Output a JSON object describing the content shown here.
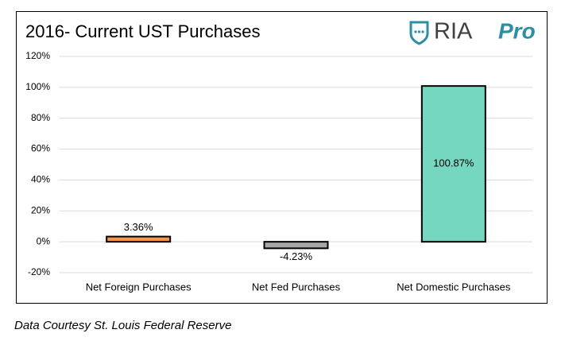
{
  "chart_data": {
    "type": "bar",
    "title": "2016- Current UST Purchases",
    "logo": "RIA",
    "logo_accent": "Pro",
    "categories": [
      "Net Foreign Purchases",
      "Net Fed Purchases",
      "Net Domestic Purchases"
    ],
    "values": [
      3.36,
      -4.23,
      100.87
    ],
    "value_labels": [
      "3.36%",
      "-4.23%",
      "100.87%"
    ],
    "colors": [
      "#f79646",
      "#a6a6a6",
      "#76d7c0"
    ],
    "ylim": [
      -20,
      120
    ],
    "yticks": [
      {
        "value": -20,
        "label": "-20%"
      },
      {
        "value": 0,
        "label": "0%"
      },
      {
        "value": 20,
        "label": "20%"
      },
      {
        "value": 40,
        "label": "40%"
      },
      {
        "value": 60,
        "label": "60%"
      },
      {
        "value": 80,
        "label": "80%"
      },
      {
        "value": 100,
        "label": "100%"
      },
      {
        "value": 120,
        "label": "120%"
      }
    ],
    "grid": true,
    "source": "Data Courtesy St. Louis Federal Reserve"
  }
}
